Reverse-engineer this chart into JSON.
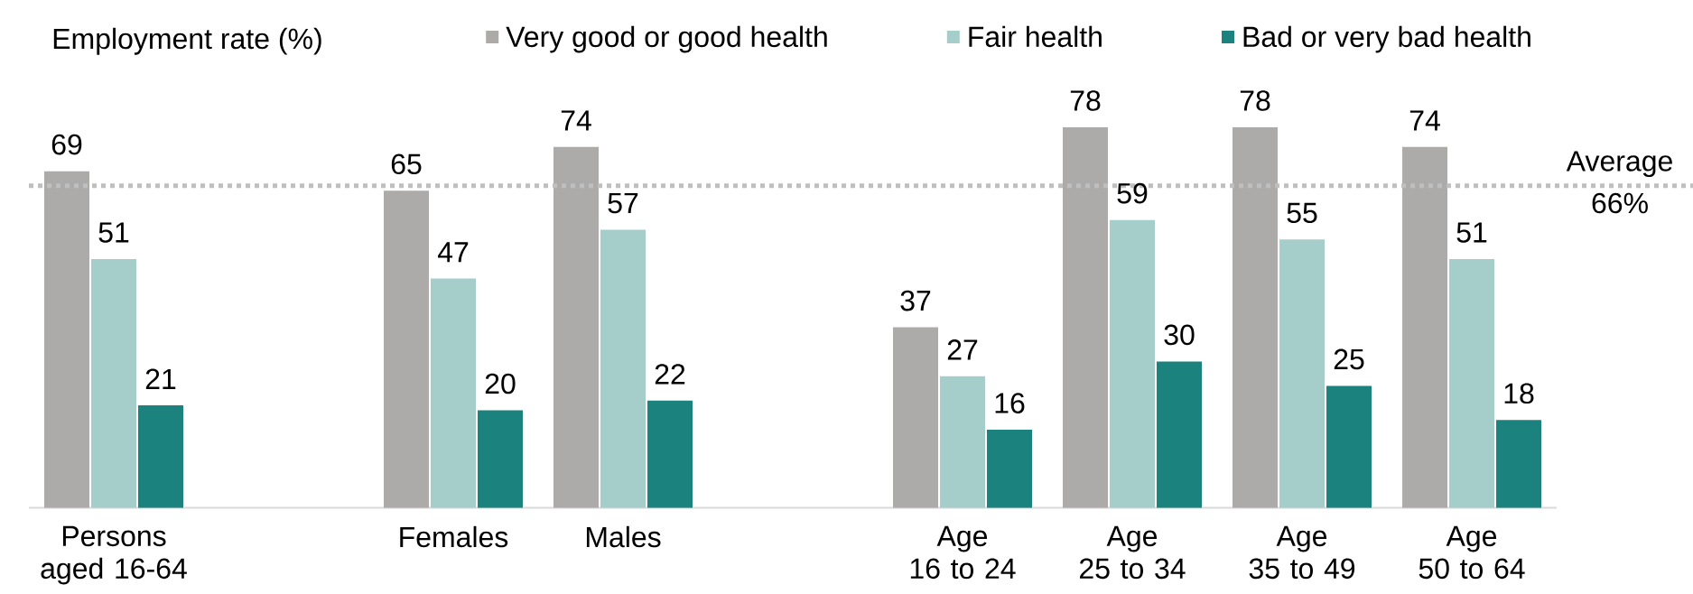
{
  "chart_data": {
    "type": "bar",
    "ylabel": "Employment rate (%)",
    "categories": [
      "Persons\naged 16-64",
      null,
      "Females",
      "Males",
      null,
      "Age\n16 to 24",
      "Age\n25 to 34",
      "Age\n35 to 49",
      "Age\n50 to 64"
    ],
    "series": [
      {
        "name": "Very good or good health",
        "color": "#adaaaa",
        "values": [
          69,
          null,
          65,
          74,
          null,
          37,
          78,
          78,
          74
        ]
      },
      {
        "name": "Fair health",
        "color": "#a5cecb",
        "values": [
          51,
          null,
          47,
          57,
          null,
          27,
          59,
          55,
          51
        ]
      },
      {
        "name": "Bad or very bad health",
        "color": "#1b827d",
        "values": [
          21,
          null,
          20,
          22,
          null,
          16,
          30,
          25,
          18
        ]
      }
    ],
    "data_labels": true,
    "legend": "top",
    "ref_lines": [
      {
        "axis": "y",
        "value": 66,
        "label": "Average\n66%",
        "color": "#bfbfbf",
        "line_style": "dotted"
      }
    ]
  }
}
